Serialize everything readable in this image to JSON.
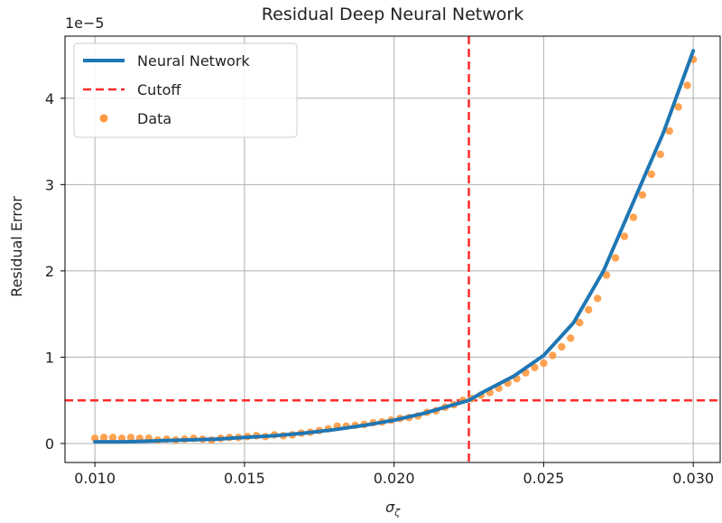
{
  "chart_data": {
    "type": "line",
    "title": "Residual Deep Neural Network",
    "xlabel": "σ_ζ",
    "ylabel": "Residual Error",
    "y_offset_text": "1e−5",
    "xlim": [
      0.009,
      0.0309
    ],
    "ylim": [
      -0.22,
      4.72
    ],
    "x_ticks": [
      0.01,
      0.015,
      0.02,
      0.025,
      0.03
    ],
    "x_tick_labels": [
      "0.010",
      "0.015",
      "0.020",
      "0.025",
      "0.030"
    ],
    "y_ticks": [
      0,
      1,
      2,
      3,
      4
    ],
    "y_tick_labels": [
      "0",
      "1",
      "2",
      "3",
      "4"
    ],
    "y_scale_note": "values in units of 1e-5",
    "grid": true,
    "legend_position": "top-left",
    "series": [
      {
        "name": "Neural Network",
        "kind": "line",
        "color": "#1f77b4",
        "x": [
          0.01,
          0.011,
          0.012,
          0.013,
          0.014,
          0.015,
          0.016,
          0.017,
          0.018,
          0.019,
          0.02,
          0.021,
          0.022,
          0.0225,
          0.023,
          0.024,
          0.025,
          0.026,
          0.027,
          0.028,
          0.029,
          0.03
        ],
        "y": [
          0.02,
          0.02,
          0.03,
          0.04,
          0.05,
          0.07,
          0.09,
          0.12,
          0.16,
          0.21,
          0.27,
          0.35,
          0.45,
          0.5,
          0.6,
          0.78,
          1.02,
          1.4,
          2.0,
          2.8,
          3.6,
          4.55
        ]
      },
      {
        "name": "Data",
        "kind": "scatter",
        "color": "#ff983e",
        "x": [
          0.01,
          0.0103,
          0.0106,
          0.0109,
          0.0112,
          0.0115,
          0.0118,
          0.0121,
          0.0124,
          0.0127,
          0.013,
          0.0133,
          0.0136,
          0.0139,
          0.0142,
          0.0145,
          0.0148,
          0.0151,
          0.0154,
          0.0157,
          0.016,
          0.0163,
          0.0166,
          0.0169,
          0.0172,
          0.0175,
          0.0178,
          0.0181,
          0.0184,
          0.0187,
          0.019,
          0.0193,
          0.0196,
          0.0199,
          0.0202,
          0.0205,
          0.0208,
          0.0211,
          0.0214,
          0.0217,
          0.022,
          0.0223,
          0.0226,
          0.0229,
          0.0232,
          0.0235,
          0.0238,
          0.0241,
          0.0244,
          0.0247,
          0.025,
          0.0253,
          0.0256,
          0.0259,
          0.0262,
          0.0265,
          0.0268,
          0.0271,
          0.0274,
          0.0277,
          0.028,
          0.0283,
          0.0286,
          0.0289,
          0.0292,
          0.0295,
          0.0298,
          0.03
        ],
        "y": [
          0.06,
          0.07,
          0.07,
          0.06,
          0.07,
          0.06,
          0.06,
          0.04,
          0.05,
          0.04,
          0.05,
          0.06,
          0.05,
          0.04,
          0.06,
          0.07,
          0.07,
          0.08,
          0.09,
          0.08,
          0.1,
          0.09,
          0.1,
          0.12,
          0.13,
          0.15,
          0.17,
          0.2,
          0.2,
          0.21,
          0.22,
          0.24,
          0.25,
          0.27,
          0.29,
          0.3,
          0.32,
          0.36,
          0.38,
          0.42,
          0.45,
          0.5,
          0.52,
          0.56,
          0.59,
          0.64,
          0.7,
          0.75,
          0.82,
          0.88,
          0.93,
          1.02,
          1.12,
          1.22,
          1.4,
          1.55,
          1.68,
          1.95,
          2.15,
          2.4,
          2.62,
          2.88,
          3.12,
          3.35,
          3.62,
          3.9,
          4.15,
          4.45
        ]
      },
      {
        "name": "Cutoff",
        "kind": "crosshair",
        "color": "#ff2a2a",
        "x": 0.0225,
        "y": 0.5
      }
    ]
  }
}
